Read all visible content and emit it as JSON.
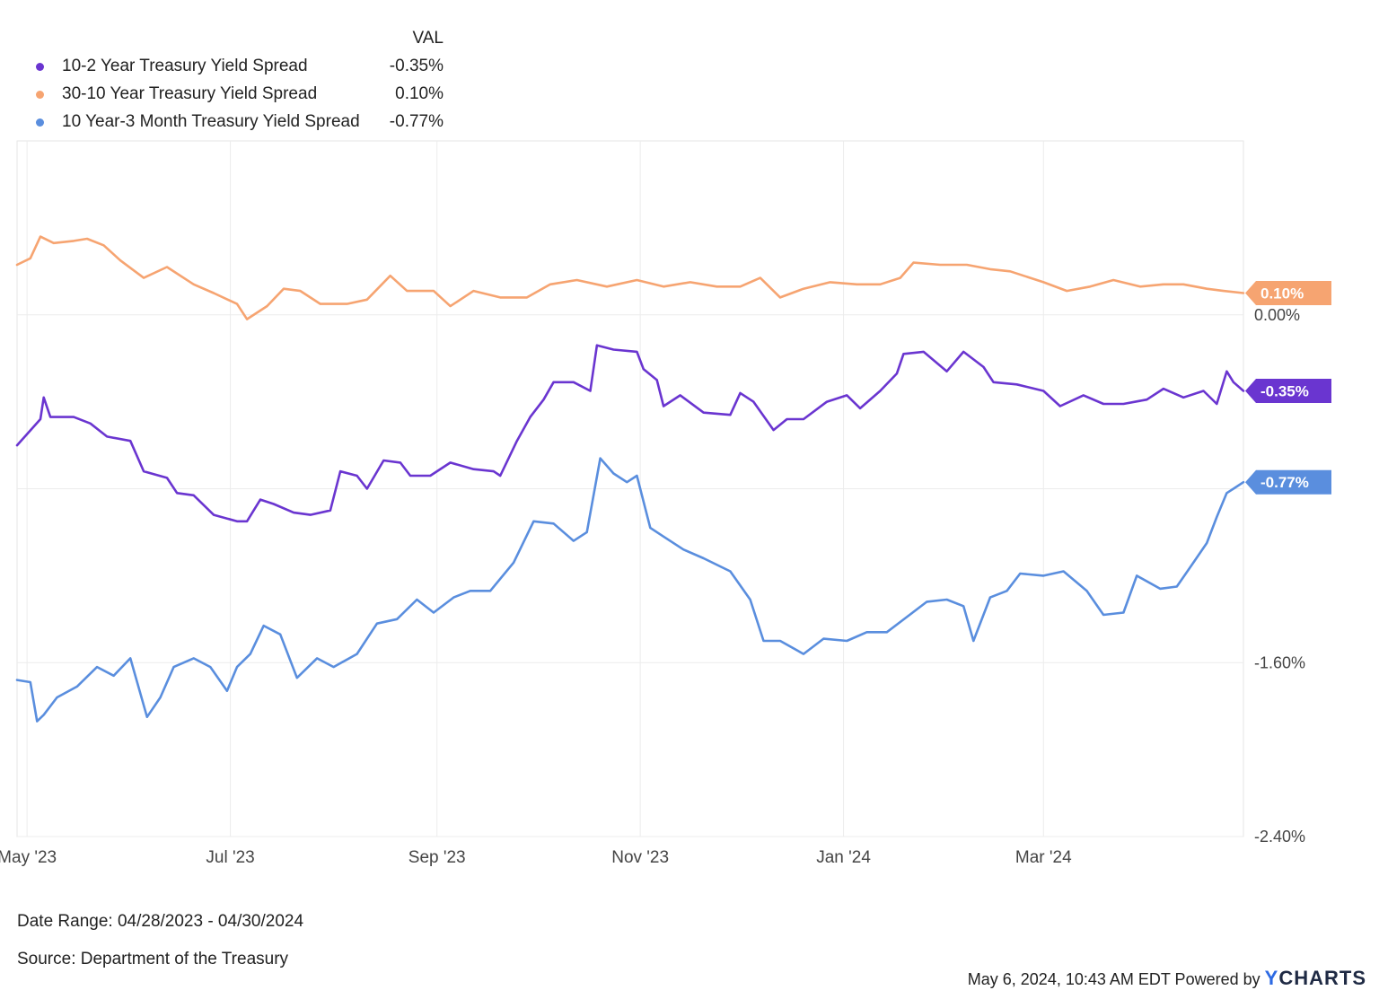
{
  "legend": {
    "header": "VAL",
    "items": [
      {
        "name": "10-2 Year Treasury Yield Spread",
        "value": "-0.35%",
        "color": "#6a35d0"
      },
      {
        "name": "30-10 Year Treasury Yield Spread",
        "value": "0.10%",
        "color": "#f6a471"
      },
      {
        "name": "10 Year-3 Month Treasury Yield Spread",
        "value": "-0.77%",
        "color": "#5a8ede"
      }
    ]
  },
  "chart_data": {
    "type": "line",
    "x_tick_labels": [
      "May '23",
      "Jul '23",
      "Sep '23",
      "Nov '23",
      "Jan '24",
      "Mar '24"
    ],
    "x_ticks": [
      "2023-05-01",
      "2023-07-01",
      "2023-09-01",
      "2023-11-01",
      "2024-01-01",
      "2024-03-01"
    ],
    "y_tick_labels": [
      "0.00%",
      "-1.60%",
      "-2.40%"
    ],
    "y_ticks": [
      0.0,
      -1.6,
      -2.4
    ],
    "gridlines_y": [
      -0.8
    ],
    "xlim": [
      "2023-04-28",
      "2024-04-30"
    ],
    "ylim": [
      -2.4,
      0.8
    ],
    "grid": true,
    "series": [
      {
        "name": "10-2 Year Treasury Yield Spread",
        "end_label": "-0.35%",
        "color": "#6a35d0",
        "points": [
          [
            "2023-04-28",
            -0.6
          ],
          [
            "2023-05-05",
            -0.48
          ],
          [
            "2023-05-06",
            -0.38
          ],
          [
            "2023-05-08",
            -0.47
          ],
          [
            "2023-05-15",
            -0.47
          ],
          [
            "2023-05-20",
            -0.5
          ],
          [
            "2023-05-25",
            -0.56
          ],
          [
            "2023-06-01",
            -0.58
          ],
          [
            "2023-06-05",
            -0.72
          ],
          [
            "2023-06-12",
            -0.75
          ],
          [
            "2023-06-15",
            -0.82
          ],
          [
            "2023-06-20",
            -0.83
          ],
          [
            "2023-06-26",
            -0.92
          ],
          [
            "2023-07-03",
            -0.95
          ],
          [
            "2023-07-06",
            -0.95
          ],
          [
            "2023-07-10",
            -0.85
          ],
          [
            "2023-07-14",
            -0.87
          ],
          [
            "2023-07-20",
            -0.91
          ],
          [
            "2023-07-25",
            -0.92
          ],
          [
            "2023-07-31",
            -0.9
          ],
          [
            "2023-08-03",
            -0.72
          ],
          [
            "2023-08-08",
            -0.74
          ],
          [
            "2023-08-11",
            -0.8
          ],
          [
            "2023-08-16",
            -0.67
          ],
          [
            "2023-08-21",
            -0.68
          ],
          [
            "2023-08-24",
            -0.74
          ],
          [
            "2023-08-30",
            -0.74
          ],
          [
            "2023-09-05",
            -0.68
          ],
          [
            "2023-09-12",
            -0.71
          ],
          [
            "2023-09-18",
            -0.72
          ],
          [
            "2023-09-20",
            -0.74
          ],
          [
            "2023-09-25",
            -0.58
          ],
          [
            "2023-09-29",
            -0.47
          ],
          [
            "2023-10-03",
            -0.39
          ],
          [
            "2023-10-06",
            -0.31
          ],
          [
            "2023-10-12",
            -0.31
          ],
          [
            "2023-10-17",
            -0.35
          ],
          [
            "2023-10-19",
            -0.14
          ],
          [
            "2023-10-24",
            -0.16
          ],
          [
            "2023-10-31",
            -0.17
          ],
          [
            "2023-11-02",
            -0.25
          ],
          [
            "2023-11-06",
            -0.3
          ],
          [
            "2023-11-08",
            -0.42
          ],
          [
            "2023-11-13",
            -0.37
          ],
          [
            "2023-11-20",
            -0.45
          ],
          [
            "2023-11-28",
            -0.46
          ],
          [
            "2023-12-01",
            -0.36
          ],
          [
            "2023-12-05",
            -0.4
          ],
          [
            "2023-12-11",
            -0.53
          ],
          [
            "2023-12-15",
            -0.48
          ],
          [
            "2023-12-20",
            -0.48
          ],
          [
            "2023-12-27",
            -0.4
          ],
          [
            "2024-01-02",
            -0.37
          ],
          [
            "2024-01-06",
            -0.43
          ],
          [
            "2024-01-12",
            -0.35
          ],
          [
            "2024-01-17",
            -0.27
          ],
          [
            "2024-01-19",
            -0.18
          ],
          [
            "2024-01-25",
            -0.17
          ],
          [
            "2024-02-01",
            -0.26
          ],
          [
            "2024-02-06",
            -0.17
          ],
          [
            "2024-02-12",
            -0.24
          ],
          [
            "2024-02-15",
            -0.31
          ],
          [
            "2024-02-22",
            -0.32
          ],
          [
            "2024-03-01",
            -0.35
          ],
          [
            "2024-03-06",
            -0.42
          ],
          [
            "2024-03-13",
            -0.37
          ],
          [
            "2024-03-19",
            -0.41
          ],
          [
            "2024-03-25",
            -0.41
          ],
          [
            "2024-04-01",
            -0.39
          ],
          [
            "2024-04-06",
            -0.34
          ],
          [
            "2024-04-12",
            -0.38
          ],
          [
            "2024-04-18",
            -0.35
          ],
          [
            "2024-04-22",
            -0.41
          ],
          [
            "2024-04-25",
            -0.26
          ],
          [
            "2024-04-27",
            -0.31
          ],
          [
            "2024-04-30",
            -0.35
          ]
        ]
      },
      {
        "name": "30-10 Year Treasury Yield Spread",
        "end_label": "0.10%",
        "color": "#f6a471",
        "points": [
          [
            "2023-04-28",
            0.23
          ],
          [
            "2023-05-02",
            0.26
          ],
          [
            "2023-05-05",
            0.36
          ],
          [
            "2023-05-09",
            0.33
          ],
          [
            "2023-05-15",
            0.34
          ],
          [
            "2023-05-19",
            0.35
          ],
          [
            "2023-05-24",
            0.32
          ],
          [
            "2023-05-29",
            0.25
          ],
          [
            "2023-06-05",
            0.17
          ],
          [
            "2023-06-12",
            0.22
          ],
          [
            "2023-06-20",
            0.14
          ],
          [
            "2023-06-26",
            0.1
          ],
          [
            "2023-07-03",
            0.05
          ],
          [
            "2023-07-06",
            -0.02
          ],
          [
            "2023-07-12",
            0.04
          ],
          [
            "2023-07-17",
            0.12
          ],
          [
            "2023-07-22",
            0.11
          ],
          [
            "2023-07-28",
            0.05
          ],
          [
            "2023-08-05",
            0.05
          ],
          [
            "2023-08-11",
            0.07
          ],
          [
            "2023-08-18",
            0.18
          ],
          [
            "2023-08-23",
            0.11
          ],
          [
            "2023-08-31",
            0.11
          ],
          [
            "2023-09-05",
            0.04
          ],
          [
            "2023-09-12",
            0.11
          ],
          [
            "2023-09-20",
            0.08
          ],
          [
            "2023-09-28",
            0.08
          ],
          [
            "2023-10-05",
            0.14
          ],
          [
            "2023-10-13",
            0.16
          ],
          [
            "2023-10-22",
            0.13
          ],
          [
            "2023-10-31",
            0.16
          ],
          [
            "2023-11-08",
            0.13
          ],
          [
            "2023-11-16",
            0.15
          ],
          [
            "2023-11-24",
            0.13
          ],
          [
            "2023-12-01",
            0.13
          ],
          [
            "2023-12-07",
            0.17
          ],
          [
            "2023-12-13",
            0.08
          ],
          [
            "2023-12-20",
            0.12
          ],
          [
            "2023-12-28",
            0.15
          ],
          [
            "2024-01-05",
            0.14
          ],
          [
            "2024-01-12",
            0.14
          ],
          [
            "2024-01-18",
            0.17
          ],
          [
            "2024-01-22",
            0.24
          ],
          [
            "2024-01-30",
            0.23
          ],
          [
            "2024-02-07",
            0.23
          ],
          [
            "2024-02-14",
            0.21
          ],
          [
            "2024-02-20",
            0.2
          ],
          [
            "2024-03-01",
            0.15
          ],
          [
            "2024-03-08",
            0.11
          ],
          [
            "2024-03-15",
            0.13
          ],
          [
            "2024-03-22",
            0.16
          ],
          [
            "2024-03-30",
            0.13
          ],
          [
            "2024-04-06",
            0.14
          ],
          [
            "2024-04-12",
            0.14
          ],
          [
            "2024-04-19",
            0.12
          ],
          [
            "2024-04-24",
            0.11
          ],
          [
            "2024-04-30",
            0.1
          ]
        ]
      },
      {
        "name": "10 Year-3 Month Treasury Yield Spread",
        "end_label": "-0.77%",
        "color": "#5a8ede",
        "points": [
          [
            "2023-04-28",
            -1.68
          ],
          [
            "2023-05-02",
            -1.69
          ],
          [
            "2023-05-04",
            -1.87
          ],
          [
            "2023-05-06",
            -1.84
          ],
          [
            "2023-05-10",
            -1.76
          ],
          [
            "2023-05-16",
            -1.71
          ],
          [
            "2023-05-22",
            -1.62
          ],
          [
            "2023-05-27",
            -1.66
          ],
          [
            "2023-06-01",
            -1.58
          ],
          [
            "2023-06-06",
            -1.85
          ],
          [
            "2023-06-10",
            -1.76
          ],
          [
            "2023-06-14",
            -1.62
          ],
          [
            "2023-06-20",
            -1.58
          ],
          [
            "2023-06-25",
            -1.62
          ],
          [
            "2023-06-30",
            -1.73
          ],
          [
            "2023-07-03",
            -1.62
          ],
          [
            "2023-07-07",
            -1.56
          ],
          [
            "2023-07-11",
            -1.43
          ],
          [
            "2023-07-16",
            -1.47
          ],
          [
            "2023-07-21",
            -1.67
          ],
          [
            "2023-07-27",
            -1.58
          ],
          [
            "2023-08-01",
            -1.62
          ],
          [
            "2023-08-08",
            -1.56
          ],
          [
            "2023-08-14",
            -1.42
          ],
          [
            "2023-08-20",
            -1.4
          ],
          [
            "2023-08-26",
            -1.31
          ],
          [
            "2023-08-31",
            -1.37
          ],
          [
            "2023-09-06",
            -1.3
          ],
          [
            "2023-09-11",
            -1.27
          ],
          [
            "2023-09-17",
            -1.27
          ],
          [
            "2023-09-24",
            -1.14
          ],
          [
            "2023-09-30",
            -0.95
          ],
          [
            "2023-10-06",
            -0.96
          ],
          [
            "2023-10-12",
            -1.04
          ],
          [
            "2023-10-16",
            -1.0
          ],
          [
            "2023-10-20",
            -0.66
          ],
          [
            "2023-10-24",
            -0.73
          ],
          [
            "2023-10-28",
            -0.77
          ],
          [
            "2023-10-31",
            -0.74
          ],
          [
            "2023-11-04",
            -0.98
          ],
          [
            "2023-11-08",
            -1.02
          ],
          [
            "2023-11-14",
            -1.08
          ],
          [
            "2023-11-20",
            -1.12
          ],
          [
            "2023-11-28",
            -1.18
          ],
          [
            "2023-12-04",
            -1.31
          ],
          [
            "2023-12-08",
            -1.5
          ],
          [
            "2023-12-13",
            -1.5
          ],
          [
            "2023-12-20",
            -1.56
          ],
          [
            "2023-12-26",
            -1.49
          ],
          [
            "2024-01-02",
            -1.5
          ],
          [
            "2024-01-08",
            -1.46
          ],
          [
            "2024-01-14",
            -1.46
          ],
          [
            "2024-01-20",
            -1.39
          ],
          [
            "2024-01-26",
            -1.32
          ],
          [
            "2024-02-01",
            -1.31
          ],
          [
            "2024-02-06",
            -1.34
          ],
          [
            "2024-02-09",
            -1.5
          ],
          [
            "2024-02-14",
            -1.3
          ],
          [
            "2024-02-19",
            -1.27
          ],
          [
            "2024-02-23",
            -1.19
          ],
          [
            "2024-03-01",
            -1.2
          ],
          [
            "2024-03-07",
            -1.18
          ],
          [
            "2024-03-14",
            -1.27
          ],
          [
            "2024-03-19",
            -1.38
          ],
          [
            "2024-03-25",
            -1.37
          ],
          [
            "2024-03-29",
            -1.2
          ],
          [
            "2024-04-05",
            -1.26
          ],
          [
            "2024-04-10",
            -1.25
          ],
          [
            "2024-04-15",
            -1.14
          ],
          [
            "2024-04-19",
            -1.05
          ],
          [
            "2024-04-22",
            -0.93
          ],
          [
            "2024-04-25",
            -0.82
          ],
          [
            "2024-04-27",
            -0.8
          ],
          [
            "2024-04-30",
            -0.77
          ]
        ]
      }
    ]
  },
  "footer": {
    "date_range": "Date Range: 04/28/2023 - 04/30/2024",
    "source": "Source: Department of the Treasury",
    "timestamp": "May 6, 2024, 10:43 AM EDT Powered by",
    "brand_y": "Y",
    "brand_rest": "CHARTS"
  }
}
